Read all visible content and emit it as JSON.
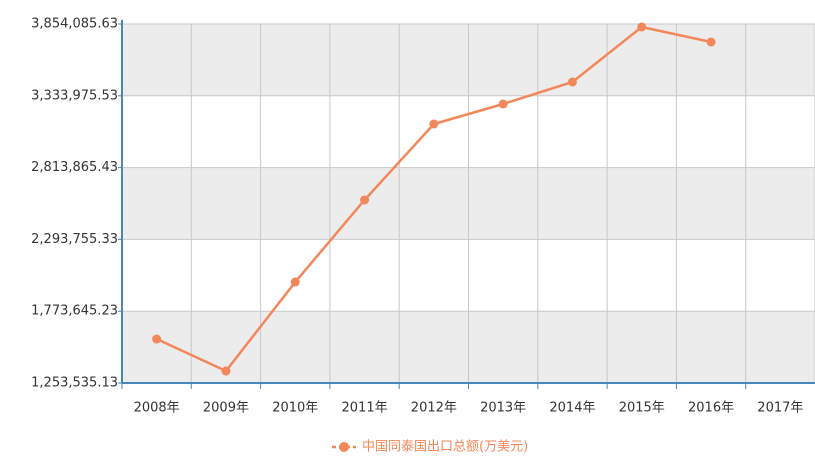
{
  "chart_data": {
    "type": "line",
    "categories": [
      "2008年",
      "2009年",
      "2010年",
      "2011年",
      "2012年",
      "2013年",
      "2014年",
      "2015年",
      "2016年",
      "2017年"
    ],
    "series": [
      {
        "name": "中国同泰国出口总额(万美元)",
        "color": "#f4875a",
        "values": [
          1572000,
          1340400,
          1985100,
          2579200,
          3129700,
          3274600,
          3434000,
          3832400,
          3723700,
          null
        ]
      }
    ],
    "ylim": [
      1253535.13,
      3854085.63
    ],
    "yticks": [
      {
        "value": 1253535.13,
        "label": "1,253,535.13"
      },
      {
        "value": 1773645.23,
        "label": "1,773,645.23"
      },
      {
        "value": 2293755.33,
        "label": "2,293,755.33"
      },
      {
        "value": 2813865.43,
        "label": "2,813,865.43"
      },
      {
        "value": 3333975.53,
        "label": "3,333,975.53"
      },
      {
        "value": 3854085.63,
        "label": "3,854,085.63"
      }
    ],
    "grid": true,
    "legend": "bottom"
  }
}
